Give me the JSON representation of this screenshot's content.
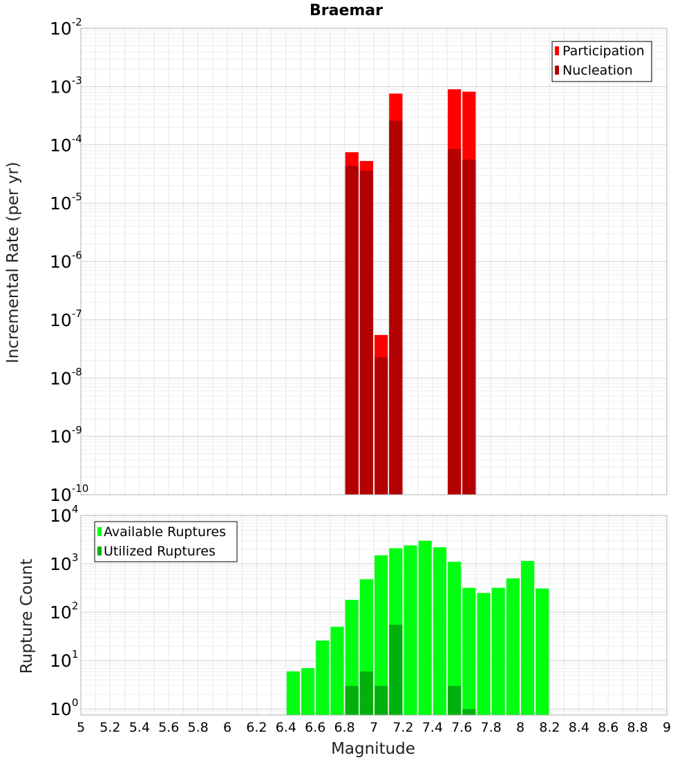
{
  "chart_data": [
    {
      "type": "bar",
      "title": "Braemar",
      "xlabel": "",
      "ylabel": "Incremental Rate (per yr)",
      "xlim": [
        5,
        9
      ],
      "ylim": [
        1e-10,
        0.01
      ],
      "yscale": "log",
      "grid": true,
      "legend_position": "top-right",
      "bin_width": 0.1,
      "series": [
        {
          "name": "Participation",
          "color": "#ff0000",
          "x": [
            6.85,
            6.95,
            7.05,
            7.15,
            7.55,
            7.65
          ],
          "values": [
            7.5e-05,
            5.3e-05,
            5.5e-08,
            0.00076,
            0.0009,
            0.00082
          ]
        },
        {
          "name": "Nucleation",
          "color": "#b30000",
          "x": [
            6.85,
            6.95,
            7.05,
            7.15,
            7.55,
            7.65
          ],
          "values": [
            4.4e-05,
            3.6e-05,
            2.3e-08,
            0.00026,
            8.5e-05,
            5.6e-05
          ]
        }
      ]
    },
    {
      "type": "bar",
      "title": "",
      "xlabel": "Magnitude",
      "ylabel": "Rupture Count",
      "xlim": [
        5,
        9
      ],
      "ylim": [
        0.75,
        10000
      ],
      "yscale": "log",
      "grid": true,
      "legend_position": "top-left",
      "bin_width": 0.1,
      "x_ticks": [
        "5",
        "5.2",
        "5.4",
        "5.6",
        "5.8",
        "6",
        "6.2",
        "6.4",
        "6.6",
        "6.8",
        "7",
        "7.2",
        "7.4",
        "7.6",
        "7.8",
        "8",
        "8.2",
        "8.4",
        "8.6",
        "8.8",
        "9"
      ],
      "series": [
        {
          "name": "Available Ruptures",
          "color": "#00ff11",
          "x": [
            6.45,
            6.55,
            6.65,
            6.75,
            6.85,
            6.95,
            7.05,
            7.15,
            7.25,
            7.35,
            7.45,
            7.55,
            7.65,
            7.75,
            7.85,
            7.95,
            8.05,
            8.15
          ],
          "values": [
            6,
            7,
            26,
            50,
            180,
            480,
            1500,
            2100,
            2400,
            3000,
            2200,
            1100,
            320,
            250,
            320,
            500,
            1150,
            310
          ]
        },
        {
          "name": "Utilized Ruptures",
          "color": "#00b00c",
          "x": [
            6.85,
            6.95,
            7.05,
            7.15,
            7.55,
            7.65
          ],
          "values": [
            3,
            6,
            3,
            55,
            3,
            1
          ]
        }
      ]
    }
  ]
}
